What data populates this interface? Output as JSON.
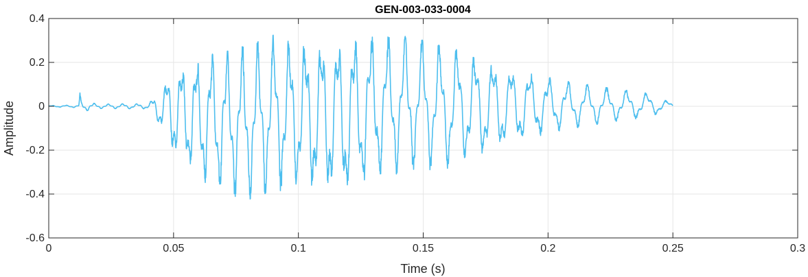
{
  "chart_data": {
    "type": "line",
    "title": "GEN-003-033-0004",
    "xlabel": "Time (s)",
    "ylabel": "Amplitude",
    "xlim": [
      0,
      0.3
    ],
    "ylim": [
      -0.6,
      0.4
    ],
    "xticks": [
      0,
      0.05,
      0.1,
      0.15,
      0.2,
      0.25,
      0.3
    ],
    "xtick_labels": [
      "0",
      "0.05",
      "0.1",
      "0.15",
      "0.2",
      "0.25",
      "0.3"
    ],
    "yticks": [
      -0.6,
      -0.4,
      -0.2,
      0,
      0.2,
      0.4
    ],
    "ytick_labels": [
      "-0.6",
      "-0.4",
      "-0.2",
      "0",
      "0.2",
      "0.4"
    ],
    "grid": true,
    "line_color": "#4DBEEE",
    "series": [
      {
        "x": [
          0,
          0.012,
          0.0125,
          0.013,
          0.02,
          0.04,
          0.044,
          0.05,
          0.06,
          0.07,
          0.08,
          0.09,
          0.1,
          0.11,
          0.12,
          0.13,
          0.14,
          0.145,
          0.16,
          0.18,
          0.2,
          0.22,
          0.24,
          0.25
        ],
        "upper": [
          0.003,
          0.006,
          0.065,
          0.025,
          0.01,
          0.012,
          0.07,
          0.17,
          0.22,
          0.25,
          0.27,
          0.32,
          0.3,
          0.3,
          0.31,
          0.32,
          0.32,
          0.32,
          0.27,
          0.2,
          0.13,
          0.09,
          0.06,
          0.015
        ],
        "lower": [
          -0.003,
          -0.006,
          -0.06,
          -0.025,
          -0.01,
          -0.012,
          -0.08,
          -0.23,
          -0.33,
          -0.39,
          -0.43,
          -0.39,
          -0.38,
          -0.4,
          -0.4,
          -0.33,
          -0.31,
          -0.3,
          -0.28,
          -0.2,
          -0.12,
          -0.08,
          -0.05,
          -0.012
        ]
      }
    ]
  }
}
